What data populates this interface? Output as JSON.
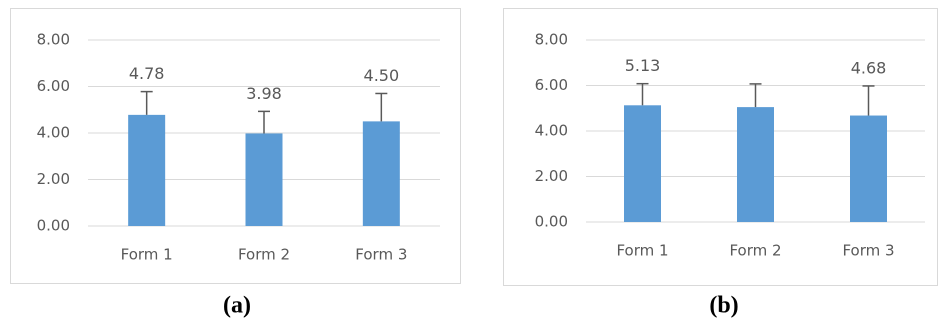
{
  "chart_data": [
    {
      "type": "bar",
      "caption": "(a)",
      "categories": [
        "Form 1",
        "Form 2",
        "Form 3"
      ],
      "values": [
        4.78,
        3.98,
        4.5
      ],
      "value_labels": [
        "4.78",
        "3.98",
        "4.50"
      ],
      "errors": [
        1.0,
        0.95,
        1.2
      ],
      "color": "#5b9bd5",
      "ylim": [
        0,
        8
      ],
      "yticks": [
        {
          "value": 0,
          "label": "0.00"
        },
        {
          "value": 2,
          "label": "2.00"
        },
        {
          "value": 4,
          "label": "4.00"
        },
        {
          "value": 6,
          "label": "6.00"
        },
        {
          "value": 8,
          "label": "8.00"
        }
      ],
      "grid": true
    },
    {
      "type": "bar",
      "caption": "(b)",
      "categories": [
        "Form 1",
        "Form 2",
        "Form 3"
      ],
      "values": [
        5.13,
        5.05,
        4.68
      ],
      "value_labels": [
        "5.13",
        null,
        "4.68"
      ],
      "errors": [
        0.95,
        1.02,
        1.3
      ],
      "color": "#5b9bd5",
      "ylim": [
        0,
        8
      ],
      "yticks": [
        {
          "value": 0,
          "label": "0.00"
        },
        {
          "value": 2,
          "label": "2.00"
        },
        {
          "value": 4,
          "label": "4.00"
        },
        {
          "value": 6,
          "label": "6.00"
        },
        {
          "value": 8,
          "label": "8.00"
        }
      ],
      "grid": true
    }
  ]
}
